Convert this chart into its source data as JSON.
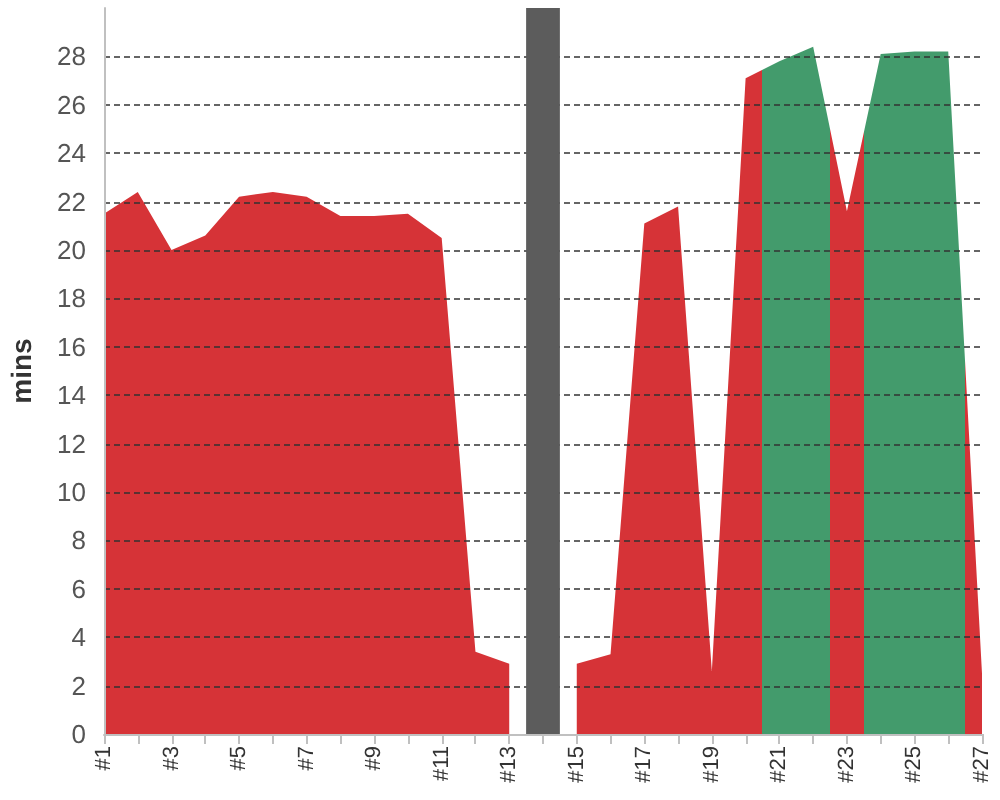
{
  "chart_data": {
    "type": "area",
    "ylabel": "mins",
    "x": [
      1,
      2,
      3,
      4,
      5,
      6,
      7,
      8,
      9,
      10,
      11,
      12,
      13,
      14,
      15,
      16,
      17,
      18,
      19,
      20,
      21,
      22,
      23,
      24,
      25,
      26,
      27
    ],
    "values": [
      21.5,
      22.4,
      20.0,
      20.6,
      22.2,
      22.4,
      22.2,
      21.4,
      21.4,
      21.5,
      20.5,
      3.4,
      2.9,
      null,
      2.9,
      3.3,
      21.1,
      21.8,
      2.6,
      27.1,
      27.8,
      28.4,
      21.6,
      28.1,
      28.2,
      28.2,
      2.5
    ],
    "colors": [
      "#d63337",
      "#d63337",
      "#d63337",
      "#d63337",
      "#d63337",
      "#d63337",
      "#d63337",
      "#d63337",
      "#d63337",
      "#d63337",
      "#d63337",
      "#d63337",
      "#d63337",
      null,
      "#d63337",
      "#d63337",
      "#d63337",
      "#d63337",
      "#d63337",
      "#d63337",
      "#439b6c",
      "#439b6c",
      "#d63337",
      "#439b6c",
      "#439b6c",
      "#439b6c",
      "#d63337"
    ],
    "xlim": [
      1,
      27
    ],
    "xticks": [
      {
        "value": 1,
        "label": "#1"
      },
      {
        "value": 2,
        "label": null
      },
      {
        "value": 3,
        "label": "#3"
      },
      {
        "value": 4,
        "label": null
      },
      {
        "value": 5,
        "label": "#5"
      },
      {
        "value": 6,
        "label": null
      },
      {
        "value": 7,
        "label": "#7"
      },
      {
        "value": 8,
        "label": null
      },
      {
        "value": 9,
        "label": "#9"
      },
      {
        "value": 10,
        "label": null
      },
      {
        "value": 11,
        "label": "#11"
      },
      {
        "value": 12,
        "label": null
      },
      {
        "value": 13,
        "label": "#13"
      },
      {
        "value": 14,
        "label": null
      },
      {
        "value": 15,
        "label": "#15"
      },
      {
        "value": 16,
        "label": null
      },
      {
        "value": 17,
        "label": "#17"
      },
      {
        "value": 18,
        "label": null
      },
      {
        "value": 19,
        "label": "#19"
      },
      {
        "value": 20,
        "label": null
      },
      {
        "value": 21,
        "label": "#21"
      },
      {
        "value": 22,
        "label": null
      },
      {
        "value": 23,
        "label": "#23"
      },
      {
        "value": 24,
        "label": null
      },
      {
        "value": 25,
        "label": "#25"
      },
      {
        "value": 26,
        "label": null
      },
      {
        "value": 27,
        "label": "#27"
      }
    ],
    "ylim": [
      0,
      30
    ],
    "yticks": [
      0,
      2,
      4,
      6,
      8,
      10,
      12,
      14,
      16,
      18,
      20,
      22,
      24,
      26,
      28
    ],
    "grid": "y",
    "bands": [
      {
        "axis": "x",
        "from": 13.5,
        "to": 14.5,
        "color": "#5c5c5c"
      }
    ]
  }
}
